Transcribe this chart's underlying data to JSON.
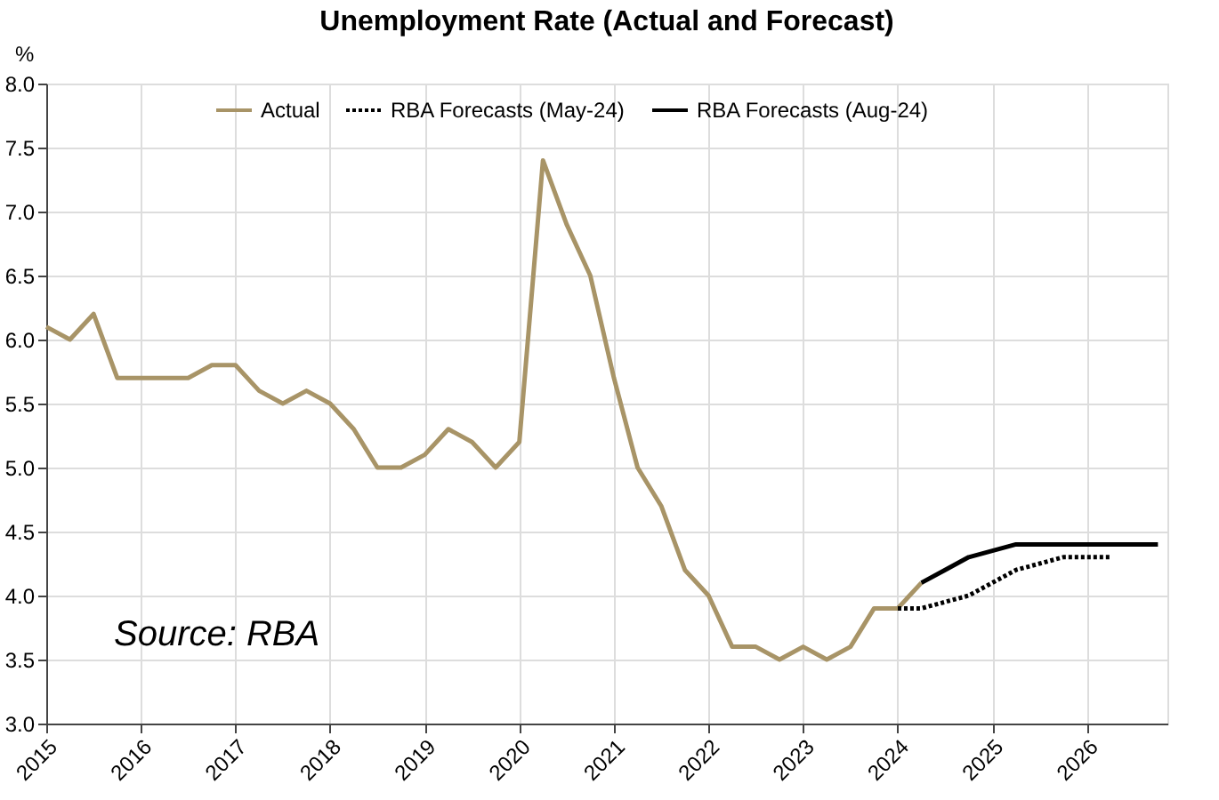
{
  "chart_data": {
    "type": "line",
    "title": "Unemployment Rate (Actual and Forecast)",
    "ylabel": "%",
    "annotations": [
      "Source: RBA"
    ],
    "series": [
      {
        "name": "Actual",
        "color": "#a89467",
        "line_style": "solid",
        "x": [
          2015.0,
          2015.25,
          2015.5,
          2015.75,
          2016.0,
          2016.25,
          2016.5,
          2016.75,
          2017.0,
          2017.25,
          2017.5,
          2017.75,
          2018.0,
          2018.25,
          2018.5,
          2018.75,
          2019.0,
          2019.25,
          2019.5,
          2019.75,
          2020.0,
          2020.25,
          2020.5,
          2020.75,
          2021.0,
          2021.25,
          2021.5,
          2021.75,
          2022.0,
          2022.25,
          2022.5,
          2022.75,
          2023.0,
          2023.25,
          2023.5,
          2023.75,
          2024.0,
          2024.25
        ],
        "values": [
          6.1,
          6.0,
          6.2,
          5.7,
          5.7,
          5.7,
          5.7,
          5.8,
          5.8,
          5.6,
          5.5,
          5.6,
          5.5,
          5.3,
          5.0,
          5.0,
          5.1,
          5.3,
          5.2,
          5.0,
          5.2,
          7.4,
          6.9,
          6.5,
          5.7,
          5.0,
          4.7,
          4.2,
          4.0,
          3.6,
          3.6,
          3.5,
          3.6,
          3.5,
          3.6,
          3.9,
          3.9,
          4.1
        ]
      },
      {
        "name": "RBA Forecasts (May-24)",
        "color": "#000000",
        "line_style": "dotted",
        "x": [
          2024.0,
          2024.25,
          2024.5,
          2024.75,
          2025.0,
          2025.25,
          2025.5,
          2025.75,
          2026.0,
          2026.25
        ],
        "values": [
          3.9,
          3.9,
          3.95,
          4.0,
          4.1,
          4.2,
          4.25,
          4.3,
          4.3,
          4.3
        ]
      },
      {
        "name": "RBA Forecasts (Aug-24)",
        "color": "#000000",
        "line_style": "solid",
        "x": [
          2024.25,
          2024.5,
          2024.75,
          2025.0,
          2025.25,
          2025.5,
          2025.75,
          2026.0,
          2026.25,
          2026.5,
          2026.75
        ],
        "values": [
          4.1,
          4.2,
          4.3,
          4.35,
          4.4,
          4.4,
          4.4,
          4.4,
          4.4,
          4.4,
          4.4
        ]
      }
    ],
    "xlim": [
      2015,
      2026.85
    ],
    "xticks": [
      2015,
      2016,
      2017,
      2018,
      2019,
      2020,
      2021,
      2022,
      2023,
      2024,
      2025,
      2026
    ],
    "ylim": [
      3.0,
      8.0
    ],
    "yticks": [
      {
        "value": 3.0,
        "label": "3.0"
      },
      {
        "value": 3.5,
        "label": "3.5"
      },
      {
        "value": 4.0,
        "label": "4.0"
      },
      {
        "value": 4.5,
        "label": "4.5"
      },
      {
        "value": 5.0,
        "label": "5.0"
      },
      {
        "value": 5.5,
        "label": "5.5"
      },
      {
        "value": 6.0,
        "label": "6.0"
      },
      {
        "value": 6.5,
        "label": "6.5"
      },
      {
        "value": 7.0,
        "label": "7.0"
      },
      {
        "value": 7.5,
        "label": "7.5"
      },
      {
        "value": 8.0,
        "label": "8.0"
      }
    ],
    "grid": true,
    "legend": "top",
    "marker": "none"
  }
}
